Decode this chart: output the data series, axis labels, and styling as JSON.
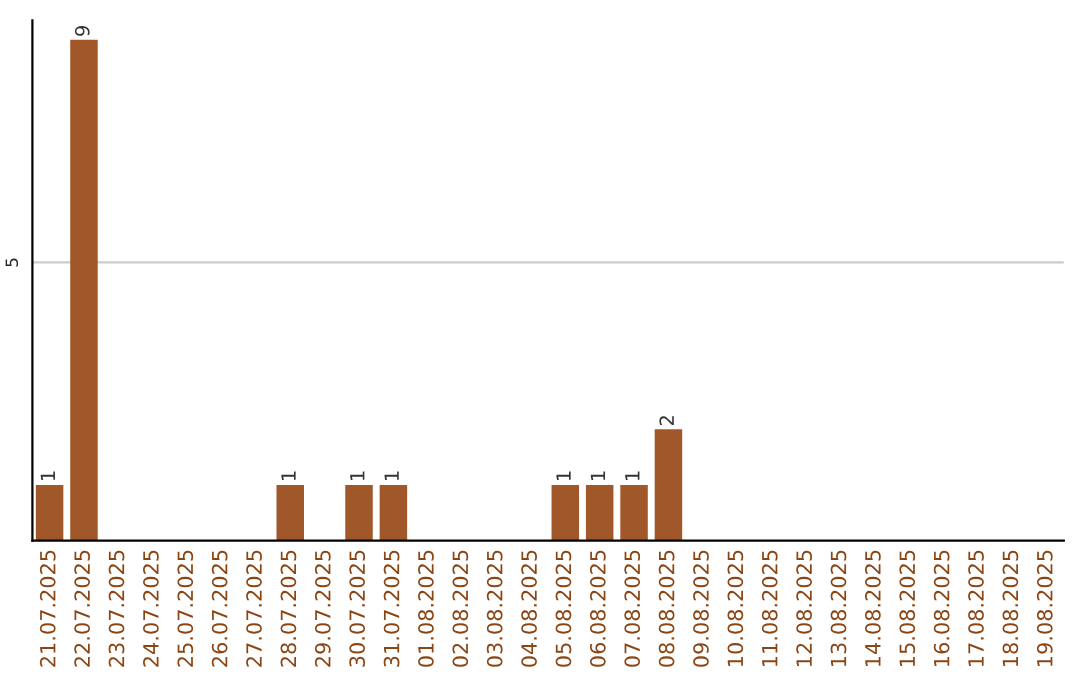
{
  "chart_data": {
    "type": "bar",
    "categories": [
      "21.07.2025",
      "22.07.2025",
      "23.07.2025",
      "24.07.2025",
      "25.07.2025",
      "26.07.2025",
      "27.07.2025",
      "28.07.2025",
      "29.07.2025",
      "30.07.2025",
      "31.07.2025",
      "01.08.2025",
      "02.08.2025",
      "03.08.2025",
      "04.08.2025",
      "05.08.2025",
      "06.08.2025",
      "07.08.2025",
      "08.08.2025",
      "09.08.2025",
      "10.08.2025",
      "11.08.2025",
      "12.08.2025",
      "13.08.2025",
      "14.08.2025",
      "15.08.2025",
      "16.08.2025",
      "17.08.2025",
      "18.08.2025",
      "19.08.2025"
    ],
    "values": [
      1,
      9,
      0,
      0,
      0,
      0,
      0,
      1,
      0,
      1,
      1,
      0,
      0,
      0,
      0,
      1,
      1,
      1,
      2,
      0,
      0,
      0,
      0,
      0,
      0,
      0,
      0,
      0,
      0,
      0
    ],
    "value_labels": [
      "1",
      "9",
      null,
      null,
      null,
      null,
      null,
      "1",
      null,
      "1",
      "1",
      null,
      null,
      null,
      null,
      "1",
      "1",
      "1",
      "2",
      null,
      null,
      null,
      null,
      null,
      null,
      null,
      null,
      null,
      null,
      null
    ],
    "color": "#a0582a",
    "ylim": [
      0,
      9.35
    ],
    "yticks": [
      5
    ],
    "grid": "y",
    "legend": false
  }
}
